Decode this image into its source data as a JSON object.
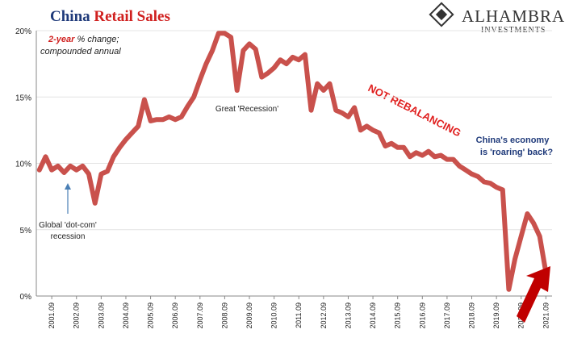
{
  "chart_data": {
    "type": "line",
    "title": {
      "part1": "China",
      "part2": "Retail Sales"
    },
    "logo": {
      "name": "ALHAMBRA",
      "sub": "INVESTMENTS"
    },
    "annotations": {
      "measure": {
        "red": "2-year",
        "rest": "% change;",
        "line2": "compounded annual"
      },
      "dotcom": [
        "Global 'dot-com'",
        "recession"
      ],
      "recession": "Great 'Recession'",
      "rebalancing": "NOT REBALANCING",
      "roaring": [
        "China's economy",
        "is 'roaring' back?"
      ]
    },
    "categories": [
      null,
      null,
      "2001.09",
      null,
      null,
      null,
      "2002.09",
      null,
      null,
      null,
      "2003.09",
      null,
      null,
      null,
      "2004.09",
      null,
      null,
      null,
      "2005.09",
      null,
      null,
      null,
      "2006.09",
      null,
      null,
      null,
      "2007.09",
      null,
      null,
      null,
      "2008.09",
      null,
      null,
      null,
      "2009.09",
      null,
      null,
      null,
      "2010.09",
      null,
      null,
      null,
      "2011.09",
      null,
      null,
      null,
      "2012.09",
      null,
      null,
      null,
      "2013.09",
      null,
      null,
      null,
      "2014.09",
      null,
      null,
      null,
      "2015.09",
      null,
      null,
      null,
      "2016.09",
      null,
      null,
      null,
      "2017.09",
      null,
      null,
      null,
      "2018.09",
      null,
      null,
      null,
      "2019.09",
      null,
      null,
      null,
      "2020.09",
      null,
      null,
      null,
      "2021.09"
    ],
    "series": [
      {
        "name": "China Retail Sales",
        "color": "#c9514c",
        "values": [
          9.5,
          10.5,
          9.5,
          9.8,
          9.3,
          9.8,
          9.5,
          9.8,
          9.2,
          7.0,
          9.2,
          9.4,
          10.5,
          11.2,
          11.8,
          12.3,
          12.8,
          14.8,
          13.2,
          13.3,
          13.3,
          13.5,
          13.3,
          13.5,
          14.3,
          15.0,
          16.3,
          17.5,
          18.5,
          19.8,
          19.8,
          19.5,
          15.5,
          18.5,
          19.0,
          18.6,
          16.5,
          16.8,
          17.2,
          17.8,
          17.5,
          18.0,
          17.8,
          18.2,
          14.0,
          16.0,
          15.5,
          16.0,
          14.0,
          13.8,
          13.5,
          14.2,
          12.5,
          12.8,
          12.5,
          12.3,
          11.3,
          11.5,
          11.2,
          11.2,
          10.5,
          10.8,
          10.6,
          10.9,
          10.5,
          10.6,
          10.3,
          10.3,
          9.8,
          9.5,
          9.2,
          9.0,
          8.6,
          8.5,
          8.2,
          8.0,
          0.5,
          2.8,
          4.5,
          6.2,
          5.5,
          4.5,
          1.8
        ]
      }
    ],
    "ylim": [
      0,
      20
    ],
    "yticks": [
      {
        "value": 0,
        "label": "0%"
      },
      {
        "value": 5,
        "label": "5%"
      },
      {
        "value": 10,
        "label": "10%"
      },
      {
        "value": 15,
        "label": "15%"
      },
      {
        "value": 20,
        "label": "20%"
      }
    ],
    "grid": true
  }
}
